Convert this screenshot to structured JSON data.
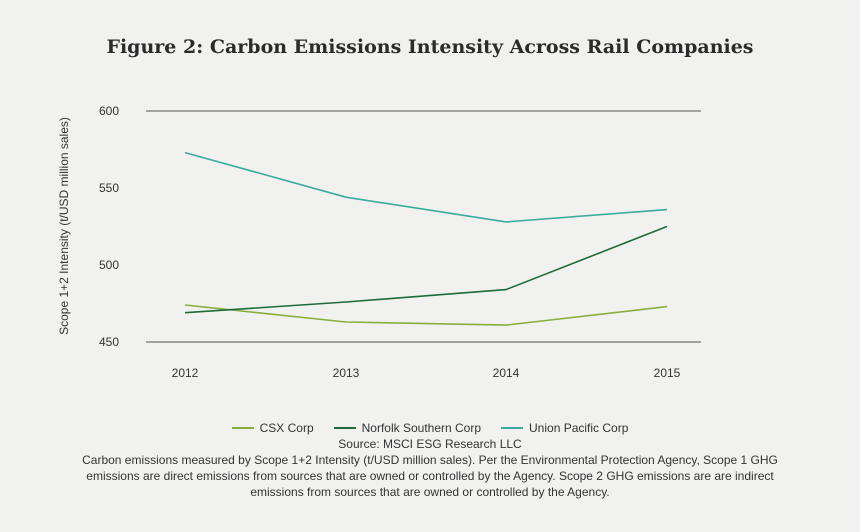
{
  "chart_data": {
    "type": "line",
    "title": "Figure 2: Carbon Emissions Intensity Across Rail Companies",
    "xlabel": "",
    "ylabel": "Scope 1+2 Intensity (t/USD million sales)",
    "categories": [
      "2012",
      "2013",
      "2014",
      "2015"
    ],
    "y_ticks": [
      450,
      500,
      550,
      600
    ],
    "ylim": [
      450,
      600
    ],
    "grid": "top and bottom lines",
    "legend_position": "bottom",
    "series": [
      {
        "name": "CSX Corp",
        "color": "#8aae3c",
        "values": [
          474,
          463,
          461,
          473
        ]
      },
      {
        "name": "Norfolk Southern Corp",
        "color": "#1f6b3a",
        "values": [
          469,
          476,
          484,
          525
        ]
      },
      {
        "name": "Union Pacific Corp",
        "color": "#3aab9c",
        "values": [
          573,
          544,
          528,
          536
        ]
      }
    ],
    "source": "Source: MSCI ESG Research LLC",
    "note": "Carbon emissions measured by Scope 1+2 Intensity (t/USD million sales). Per the Environmental Protection Agency, Scope 1 GHG emissions are direct emissions from sources that are owned or controlled by the Agency. Scope 2 GHG emissions are are indirect emissions from sources that are owned or controlled by the Agency."
  }
}
